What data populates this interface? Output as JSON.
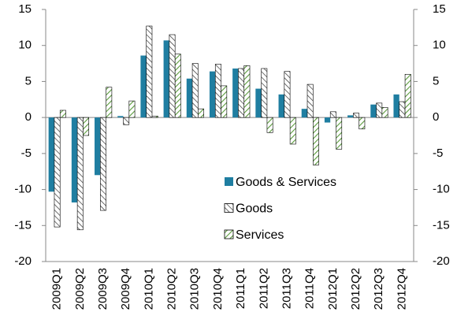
{
  "chart_data": {
    "type": "bar",
    "categories": [
      "2009Q1",
      "2009Q2",
      "2009Q3",
      "2009Q4",
      "2010Q1",
      "2010Q2",
      "2010Q3",
      "2010Q4",
      "2011Q1",
      "2011Q2",
      "2011Q3",
      "2011Q4",
      "2012Q1",
      "2012Q2",
      "2012Q3",
      "2012Q4"
    ],
    "series": [
      {
        "name": "Goods & Services",
        "color": "#1f7ea1",
        "hatch": false,
        "values": [
          -10.3,
          -11.8,
          -8.0,
          0.2,
          8.6,
          10.7,
          5.4,
          6.4,
          6.8,
          4.0,
          3.2,
          1.2,
          -0.7,
          0.3,
          1.8,
          3.2
        ]
      },
      {
        "name": "Goods",
        "color": "#333333",
        "hatch": true,
        "values": [
          -15.2,
          -15.6,
          -12.9,
          -1.0,
          12.7,
          11.5,
          7.5,
          7.4,
          6.8,
          6.8,
          6.4,
          4.6,
          0.8,
          0.6,
          2.0,
          2.2
        ]
      },
      {
        "name": "Services",
        "color": "#5a9a3c",
        "hatch": true,
        "values": [
          1.0,
          -2.5,
          4.2,
          2.3,
          0.2,
          8.8,
          1.2,
          4.4,
          7.2,
          -2.1,
          -3.7,
          -6.6,
          -4.4,
          -1.6,
          1.4,
          6.0
        ]
      }
    ],
    "ylim": [
      -20,
      15
    ],
    "yticks": [
      -20,
      -15,
      -10,
      -5,
      0,
      5,
      10,
      15
    ],
    "y2lim": [
      -20,
      15
    ],
    "y2ticks": [
      -20,
      -15,
      -10,
      -5,
      0,
      5,
      10,
      15
    ],
    "grid": false
  }
}
